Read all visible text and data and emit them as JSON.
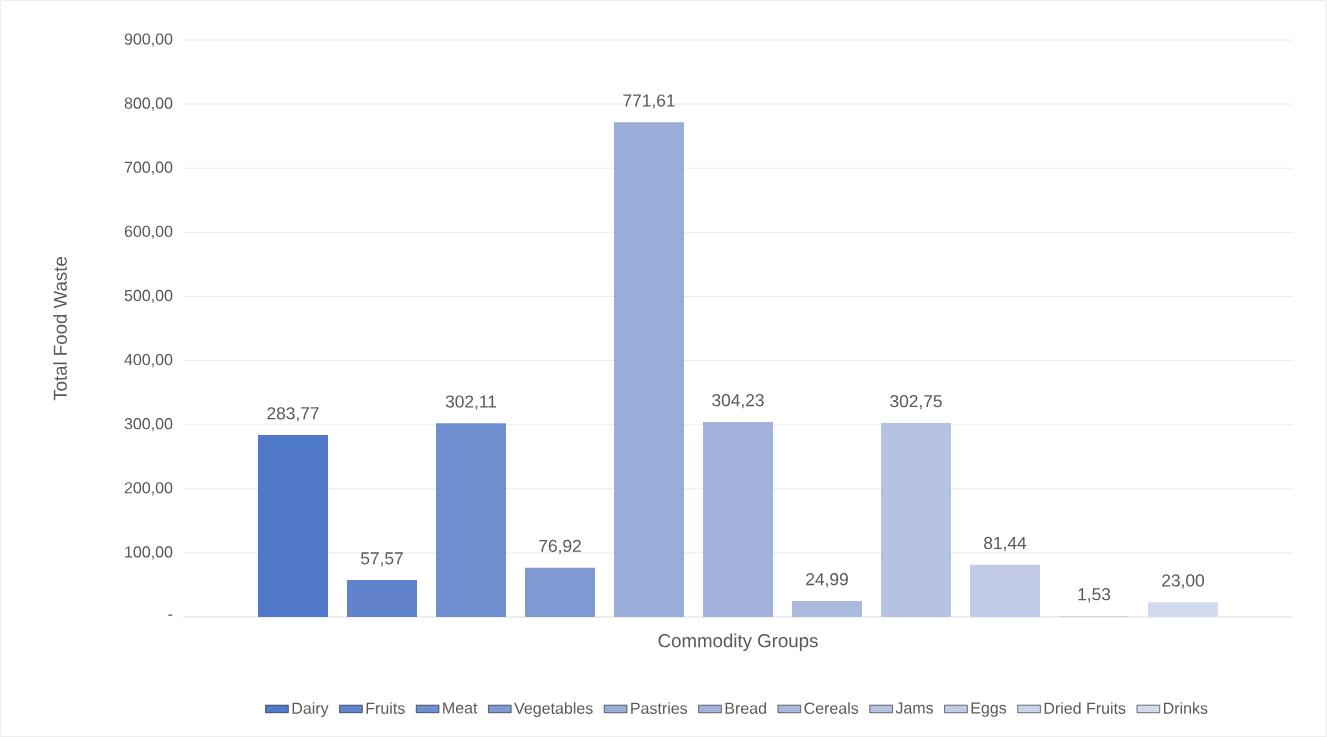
{
  "chart_data": {
    "type": "bar",
    "xlabel": "Commodity Groups",
    "ylabel": "Total Food Waste",
    "categories": [
      null
    ],
    "series": [
      {
        "name": "Dairy",
        "color": "#5079c9",
        "values": [
          283.77
        ],
        "value_labels": [
          "283,77"
        ]
      },
      {
        "name": "Fruits",
        "color": "#6083cc",
        "values": [
          57.57
        ],
        "value_labels": [
          "57,57"
        ]
      },
      {
        "name": "Meat",
        "color": "#6f8ecf",
        "values": [
          302.11
        ],
        "value_labels": [
          "302,11"
        ]
      },
      {
        "name": "Vegetables",
        "color": "#7f99d2",
        "values": [
          76.92
        ],
        "value_labels": [
          "76,92"
        ]
      },
      {
        "name": "Pastries",
        "color": "#9aacd8",
        "values": [
          771.61
        ],
        "value_labels": [
          "771,61"
        ]
      },
      {
        "name": "Bread",
        "color": "#a2b2db",
        "values": [
          304.23
        ],
        "value_labels": [
          "304,23"
        ]
      },
      {
        "name": "Cereals",
        "color": "#aab9de",
        "values": [
          24.99
        ],
        "value_labels": [
          "24,99"
        ]
      },
      {
        "name": "Jams",
        "color": "#b6c2e2",
        "values": [
          302.75
        ],
        "value_labels": [
          "302,75"
        ]
      },
      {
        "name": "Eggs",
        "color": "#c1cbe6",
        "values": [
          81.44
        ],
        "value_labels": [
          "81,44"
        ]
      },
      {
        "name": "Dried Fruits",
        "color": "#cbd3ea",
        "values": [
          1.53
        ],
        "value_labels": [
          "1,53"
        ]
      },
      {
        "name": "Drinks",
        "color": "#d5dbee",
        "values": [
          23.0
        ],
        "value_labels": [
          "23,00"
        ]
      }
    ],
    "ylim": [
      0,
      900
    ],
    "yticks": [
      {
        "value": 0,
        "label": "-"
      },
      {
        "value": 100,
        "label": "100,00"
      },
      {
        "value": 200,
        "label": "200,00"
      },
      {
        "value": 300,
        "label": "300,00"
      },
      {
        "value": 400,
        "label": "400,00"
      },
      {
        "value": 500,
        "label": "500,00"
      },
      {
        "value": 600,
        "label": "600,00"
      },
      {
        "value": 700,
        "label": "700,00"
      },
      {
        "value": 800,
        "label": "800,00"
      },
      {
        "value": 900,
        "label": "900,00"
      }
    ],
    "grid": "y",
    "legend": "bottom"
  }
}
